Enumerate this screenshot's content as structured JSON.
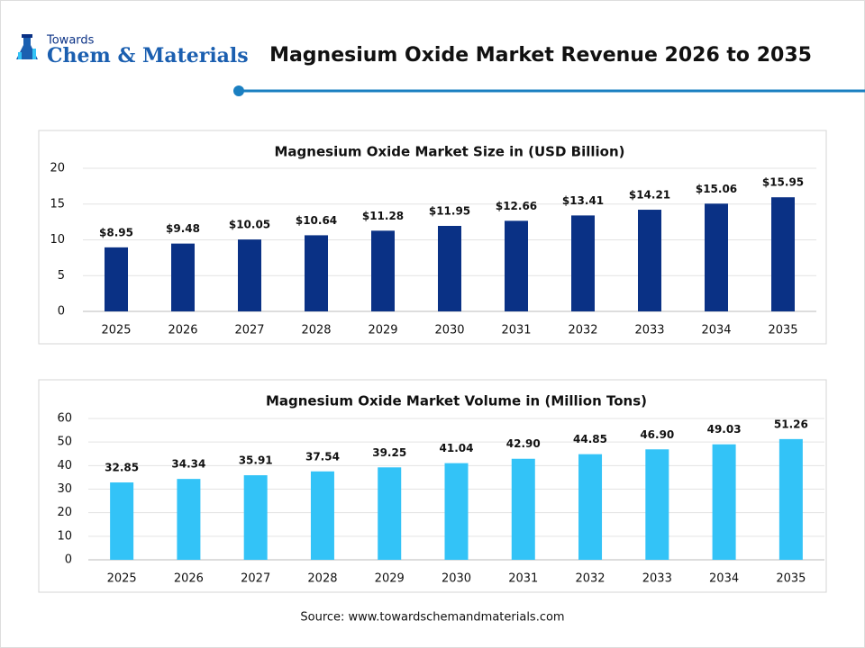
{
  "header": {
    "logo_top": "Towards",
    "logo_main": "Chem & Materials",
    "title": "Magnesium Oxide Market Revenue 2026 to 2035"
  },
  "chart_data": [
    {
      "type": "bar",
      "title": "Magnesium Oxide Market Size in (USD Billion)",
      "categories": [
        "2025",
        "2026",
        "2027",
        "2028",
        "2029",
        "2030",
        "2031",
        "2032",
        "2033",
        "2034",
        "2035"
      ],
      "values": [
        8.95,
        9.48,
        10.05,
        10.64,
        11.28,
        11.95,
        12.66,
        13.41,
        14.21,
        15.06,
        15.95
      ],
      "value_labels": [
        "$8.95",
        "$9.48",
        "$10.05",
        "$10.64",
        "$11.28",
        "$11.95",
        "$12.66",
        "$13.41",
        "$14.21",
        "$15.06",
        "$15.95"
      ],
      "color": "#0a3185",
      "ylim": [
        0,
        20
      ],
      "yticks": [
        0,
        5,
        10,
        15,
        20
      ],
      "grid": true
    },
    {
      "type": "bar",
      "title": "Magnesium Oxide Market Volume in (Million Tons)",
      "categories": [
        "2025",
        "2026",
        "2027",
        "2028",
        "2029",
        "2030",
        "2031",
        "2032",
        "2033",
        "2034",
        "2035"
      ],
      "values": [
        32.85,
        34.34,
        35.91,
        37.54,
        39.25,
        41.04,
        42.9,
        44.85,
        46.9,
        49.03,
        51.26
      ],
      "value_labels": [
        "32.85",
        "34.34",
        "35.91",
        "37.54",
        "39.25",
        "41.04",
        "42.90",
        "44.85",
        "46.90",
        "49.03",
        "51.26"
      ],
      "color": "#33c3f7",
      "ylim": [
        0,
        60
      ],
      "yticks": [
        0,
        10,
        20,
        30,
        40,
        50,
        60
      ],
      "grid": true
    }
  ],
  "source": "Source: www.towardschemandmaterials.com"
}
